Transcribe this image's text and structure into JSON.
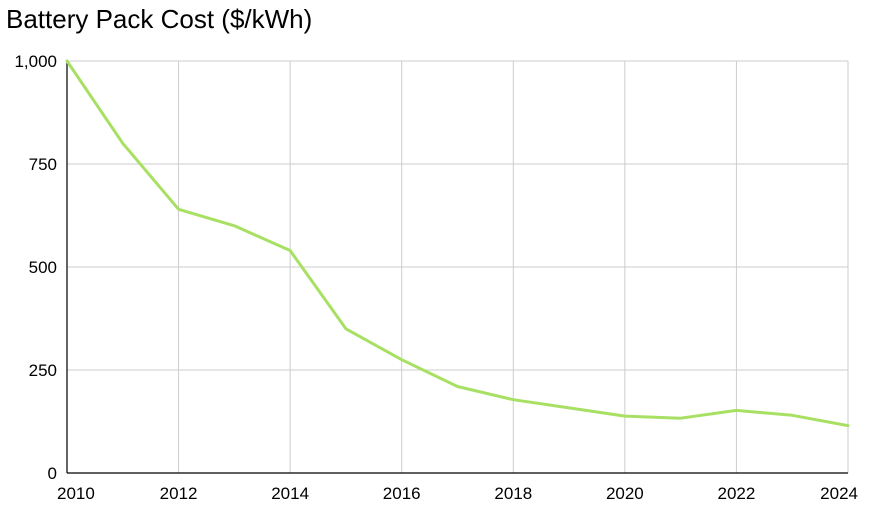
{
  "chart_data": {
    "type": "line",
    "title": "Battery Pack Cost ($/kWh)",
    "xlabel": "",
    "ylabel": "",
    "x": [
      2010,
      2011,
      2012,
      2013,
      2014,
      2015,
      2016,
      2017,
      2018,
      2019,
      2020,
      2021,
      2022,
      2023,
      2024
    ],
    "series": [
      {
        "values": [
          1000,
          800,
          640,
          600,
          540,
          350,
          275,
          210,
          178,
          158,
          138,
          133,
          152,
          140,
          115
        ]
      }
    ],
    "xlim": [
      2010,
      2024
    ],
    "ylim": [
      0,
      1000
    ],
    "x_ticks": [
      2010,
      2012,
      2014,
      2016,
      2018,
      2020,
      2022,
      2024
    ],
    "y_ticks": [
      0,
      250,
      500,
      750,
      1000
    ],
    "y_tick_labels": [
      "0",
      "250",
      "500",
      "750",
      "1,000"
    ],
    "grid": true,
    "legend": "none",
    "colors": {
      "line": "#a8e063",
      "grid": "#cccccc",
      "axis": "#000000"
    }
  }
}
